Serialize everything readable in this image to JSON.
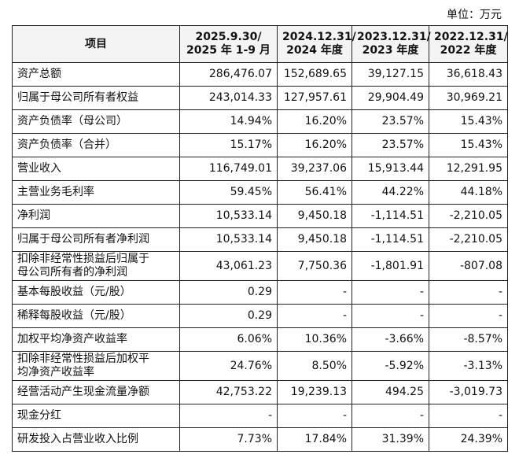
{
  "unit": "单位：万元",
  "table": {
    "header": [
      [
        "项目"
      ],
      [
        "2025.9.30/",
        "2025 年 1-9 月"
      ],
      [
        "2024.12.31/",
        "2024 年度"
      ],
      [
        "2023.12.31/",
        "2023 年度"
      ],
      [
        "2022.12.31/",
        "2022 年度"
      ]
    ],
    "rows": [
      {
        "label": [
          "资产总额"
        ],
        "values": [
          "286,476.07",
          "152,689.65",
          "39,127.15",
          "36,618.43"
        ]
      },
      {
        "label": [
          "归属于母公司所有者权益"
        ],
        "values": [
          "243,014.33",
          "127,957.61",
          "29,904.49",
          "30,969.21"
        ]
      },
      {
        "label": [
          "资产负债率（母公司）"
        ],
        "values": [
          "14.94%",
          "16.20%",
          "23.57%",
          "15.43%"
        ]
      },
      {
        "label": [
          "资产负债率（合并）"
        ],
        "values": [
          "15.17%",
          "16.20%",
          "23.57%",
          "15.43%"
        ]
      },
      {
        "label": [
          "营业收入"
        ],
        "values": [
          "116,749.01",
          "39,237.06",
          "15,913.44",
          "12,291.95"
        ]
      },
      {
        "label": [
          "主营业务毛利率"
        ],
        "values": [
          "59.45%",
          "56.41%",
          "44.22%",
          "44.18%"
        ]
      },
      {
        "label": [
          "净利润"
        ],
        "values": [
          "10,533.14",
          "9,450.18",
          "-1,114.51",
          "-2,210.05"
        ]
      },
      {
        "label": [
          "归属于母公司所有者净利润"
        ],
        "values": [
          "10,533.14",
          "9,450.18",
          "-1,114.51",
          "-2,210.05"
        ]
      },
      {
        "label": [
          "扣除非经常性损益后归属于",
          "母公司所有者的净利润"
        ],
        "values": [
          "43,061.23",
          "7,750.36",
          "-1,801.91",
          "-807.08"
        ]
      },
      {
        "label": [
          "基本每股收益（元/股）"
        ],
        "values": [
          "0.29",
          "-",
          "-",
          "-"
        ]
      },
      {
        "label": [
          "稀释每股收益（元/股）"
        ],
        "values": [
          "0.29",
          "-",
          "-",
          "-"
        ]
      },
      {
        "label": [
          "加权平均净资产收益率"
        ],
        "values": [
          "6.06%",
          "10.36%",
          "-3.66%",
          "-8.57%"
        ]
      },
      {
        "label": [
          "扣除非经常性损益后加权平",
          "均净资产收益率"
        ],
        "values": [
          "24.76%",
          "8.50%",
          "-5.92%",
          "-3.13%"
        ]
      },
      {
        "label": [
          "经营活动产生现金流量净额"
        ],
        "values": [
          "42,753.22",
          "19,239.13",
          "494.25",
          "-3,019.73"
        ]
      },
      {
        "label": [
          "现金分红"
        ],
        "values": [
          "-",
          "-",
          "-",
          "-"
        ]
      },
      {
        "label": [
          "研发投入占营业收入比例"
        ],
        "values": [
          "7.73%",
          "17.84%",
          "31.39%",
          "24.39%"
        ]
      }
    ]
  }
}
